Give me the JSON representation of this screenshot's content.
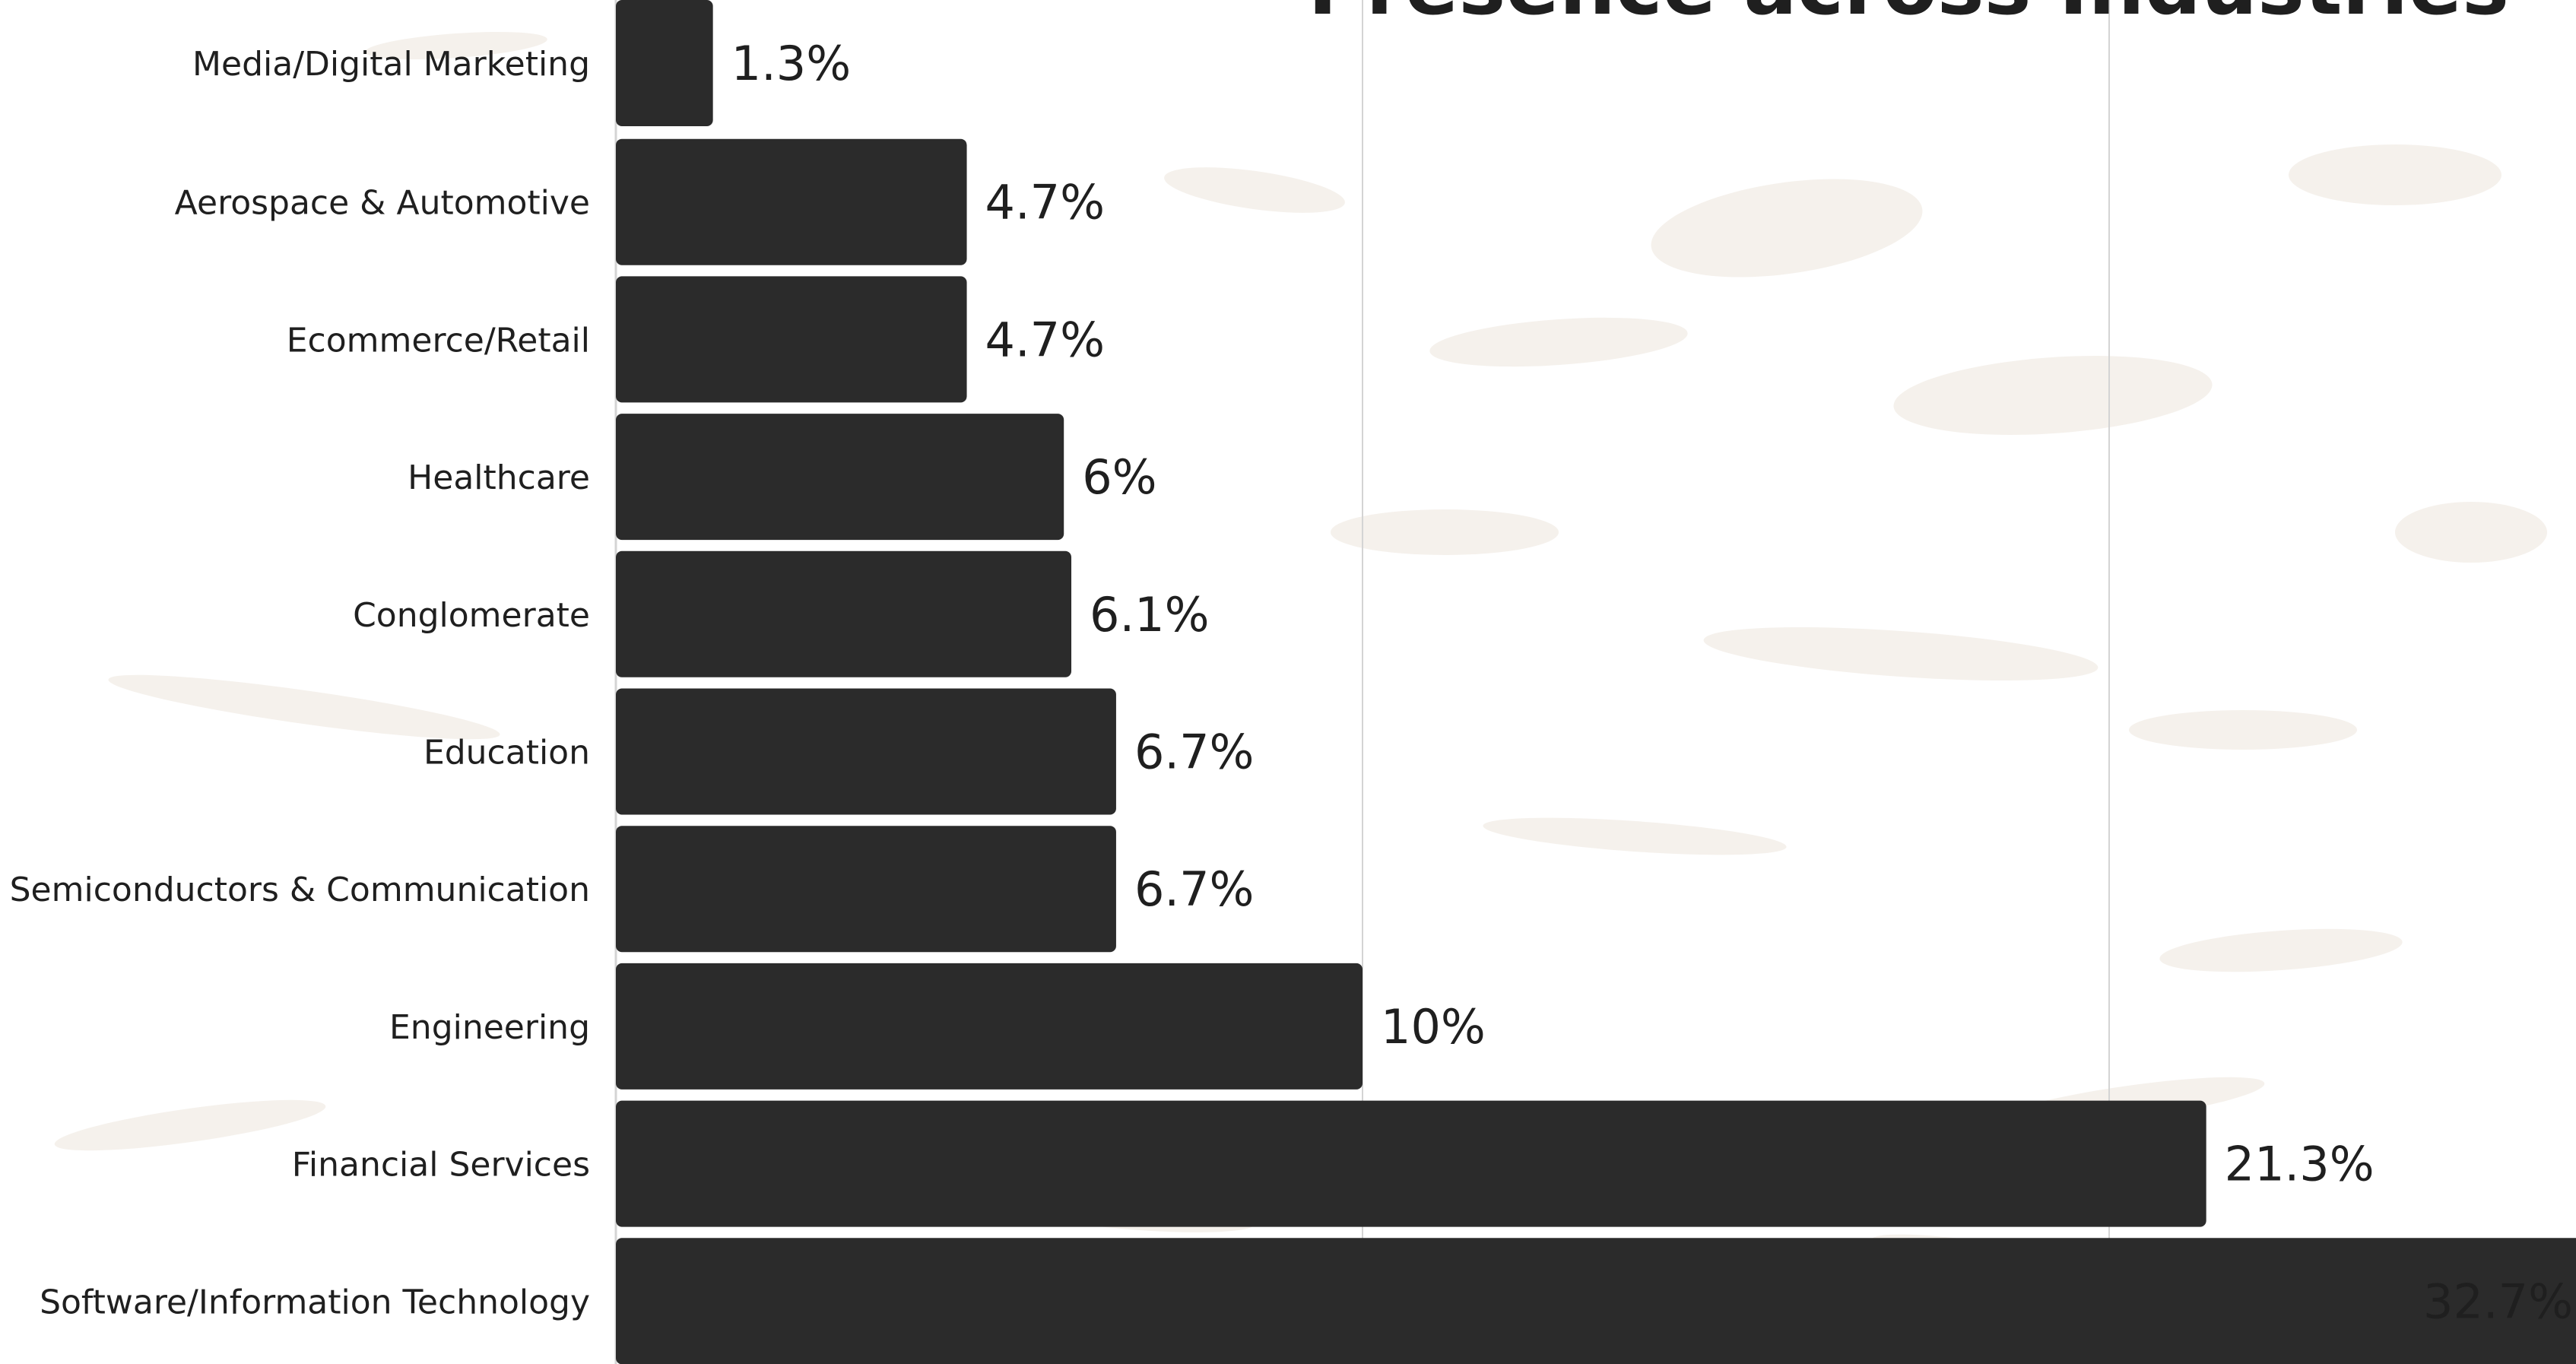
{
  "chart_data": {
    "type": "bar",
    "orientation": "horizontal",
    "title": "Presence across Industries",
    "xlim": [
      0,
      50
    ],
    "grid": true,
    "categories": [
      "Media/Digital Marketing",
      "Aerospace & Automotive",
      "Ecommerce/Retail",
      "Healthcare",
      "Conglomerate",
      "Education",
      "Semiconductors & Communication",
      "Engineering",
      "Financial Services",
      "Software/Information Technology"
    ],
    "values": [
      1.3,
      4.7,
      4.7,
      6.0,
      6.1,
      6.7,
      6.7,
      10.0,
      21.3,
      32.7
    ],
    "data_labels": [
      "1.3%",
      "4.7%",
      "4.7%",
      "6%",
      "6.1%",
      "6.7%",
      "6.7%",
      "10%",
      "21.3%",
      "32.7%"
    ],
    "colors": {
      "bar": "#2b2b2b",
      "grid": "#d4d4d4",
      "text": "#1f1f1f",
      "texture": "#ece6dc",
      "background": "#ffffff"
    }
  }
}
